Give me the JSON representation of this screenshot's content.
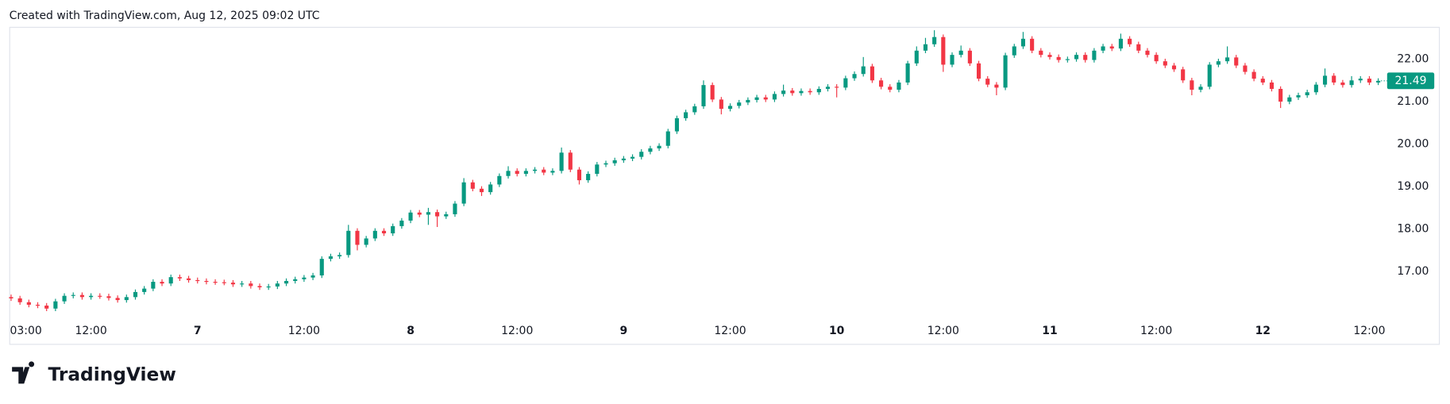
{
  "header": {
    "title": "Created with TradingView.com, Aug 12, 2025 09:02 UTC"
  },
  "footer": {
    "logo_text": "TradingView"
  },
  "chart_data": {
    "type": "candlestick",
    "up_color": "#089981",
    "down_color": "#f23645",
    "ylim": [
      15.93,
      22.76
    ],
    "yticks": [
      {
        "value": 17,
        "label": "17.00"
      },
      {
        "value": 18,
        "label": "18.00"
      },
      {
        "value": 19,
        "label": "19.00"
      },
      {
        "value": 20,
        "label": "20.00"
      },
      {
        "value": 21,
        "label": "21.00"
      },
      {
        "value": 22,
        "label": "22.00"
      }
    ],
    "grid": false,
    "categories": [
      "03:00",
      null,
      null,
      null,
      null,
      null,
      null,
      null,
      null,
      "12:00",
      null,
      null,
      null,
      null,
      null,
      null,
      null,
      null,
      null,
      null,
      null,
      "7",
      null,
      null,
      null,
      null,
      null,
      null,
      null,
      null,
      null,
      null,
      null,
      "12:00",
      null,
      null,
      null,
      null,
      null,
      null,
      null,
      null,
      null,
      null,
      null,
      "8",
      null,
      null,
      null,
      null,
      null,
      null,
      null,
      null,
      null,
      null,
      null,
      "12:00",
      null,
      null,
      null,
      null,
      null,
      null,
      null,
      null,
      null,
      null,
      null,
      "9",
      null,
      null,
      null,
      null,
      null,
      null,
      null,
      null,
      null,
      null,
      null,
      "12:00",
      null,
      null,
      null,
      null,
      null,
      null,
      null,
      null,
      null,
      null,
      null,
      "10",
      null,
      null,
      null,
      null,
      null,
      null,
      null,
      null,
      null,
      null,
      null,
      "12:00",
      null,
      null,
      null,
      null,
      null,
      null,
      null,
      null,
      null,
      null,
      null,
      "11",
      null,
      null,
      null,
      null,
      null,
      null,
      null,
      null,
      null,
      null,
      null,
      "12:00",
      null,
      null,
      null,
      null,
      null,
      null,
      null,
      null,
      null,
      null,
      null,
      "12",
      null,
      null,
      null,
      null,
      null,
      null,
      null,
      null,
      null,
      null,
      null,
      "12:00",
      null
    ],
    "open": [
      16.4,
      16.37,
      16.28,
      16.22,
      16.2,
      16.13,
      16.3,
      16.43,
      16.45,
      16.4,
      16.43,
      16.42,
      16.38,
      16.33,
      16.4,
      16.52,
      16.6,
      16.76,
      16.72,
      16.87,
      16.84,
      16.8,
      16.78,
      16.76,
      16.75,
      16.74,
      16.7,
      16.72,
      16.66,
      16.63,
      16.65,
      16.72,
      16.78,
      16.82,
      16.86,
      16.91,
      17.3,
      17.36,
      17.39,
      17.96,
      17.63,
      17.78,
      17.96,
      17.9,
      18.07,
      18.2,
      18.39,
      18.34,
      18.4,
      18.3,
      18.35,
      18.6,
      19.1,
      18.95,
      18.87,
      19.05,
      19.25,
      19.37,
      19.3,
      19.37,
      19.4,
      19.33,
      19.37,
      19.8,
      19.4,
      19.15,
      19.3,
      19.52,
      19.55,
      19.62,
      19.66,
      19.7,
      19.82,
      19.9,
      19.96,
      20.3,
      20.61,
      20.75,
      20.89,
      21.39,
      21.05,
      20.83,
      20.9,
      20.98,
      21.04,
      21.1,
      21.05,
      21.18,
      21.26,
      21.2,
      21.25,
      21.22,
      21.3,
      21.35,
      21.33,
      21.55,
      21.65,
      21.83,
      21.5,
      21.35,
      21.28,
      21.45,
      21.9,
      22.2,
      22.35,
      22.52,
      21.87,
      22.1,
      22.2,
      21.9,
      21.54,
      21.4,
      21.33,
      22.09,
      22.3,
      22.48,
      22.2,
      22.1,
      22.05,
      21.98,
      22.0,
      22.1,
      21.98,
      22.2,
      22.3,
      22.25,
      22.48,
      22.35,
      22.2,
      22.1,
      21.95,
      21.85,
      21.76,
      21.5,
      21.28,
      21.35,
      21.87,
      21.95,
      22.04,
      21.85,
      21.7,
      21.54,
      21.45,
      21.3,
      21.0,
      21.1,
      21.15,
      21.22,
      21.4,
      21.61,
      21.45,
      21.39,
      21.5,
      21.54,
      21.45
    ],
    "high": [
      16.46,
      16.43,
      16.34,
      16.28,
      16.26,
      16.36,
      16.49,
      16.51,
      16.51,
      16.49,
      16.49,
      16.48,
      16.44,
      16.46,
      16.58,
      16.66,
      16.82,
      16.82,
      16.93,
      16.93,
      16.9,
      16.86,
      16.84,
      16.82,
      16.81,
      16.8,
      16.78,
      16.78,
      16.72,
      16.71,
      16.78,
      16.84,
      16.88,
      16.92,
      16.97,
      17.36,
      17.42,
      17.45,
      18.1,
      18.02,
      17.84,
      18.02,
      18.02,
      18.13,
      18.26,
      18.45,
      18.45,
      18.5,
      18.46,
      18.41,
      18.66,
      19.2,
      19.16,
      19.01,
      19.11,
      19.31,
      19.48,
      19.43,
      19.43,
      19.46,
      19.46,
      19.43,
      19.92,
      19.86,
      19.46,
      19.36,
      19.58,
      19.61,
      19.68,
      19.72,
      19.76,
      19.88,
      19.96,
      20.02,
      20.36,
      20.67,
      20.81,
      20.95,
      21.5,
      21.45,
      21.11,
      20.96,
      21.04,
      21.1,
      21.16,
      21.16,
      21.24,
      21.4,
      21.32,
      21.31,
      21.31,
      21.36,
      21.41,
      21.41,
      21.61,
      21.71,
      22.05,
      21.89,
      21.56,
      21.41,
      21.51,
      21.96,
      22.3,
      22.5,
      22.68,
      22.58,
      22.16,
      22.32,
      22.26,
      21.96,
      21.6,
      21.46,
      22.15,
      22.36,
      22.64,
      22.54,
      22.26,
      22.16,
      22.11,
      22.06,
      22.16,
      22.16,
      22.26,
      22.36,
      22.36,
      22.6,
      22.54,
      22.41,
      22.26,
      22.16,
      22.01,
      21.91,
      21.82,
      21.56,
      21.41,
      21.93,
      22.01,
      22.3,
      22.1,
      21.91,
      21.76,
      21.6,
      21.51,
      21.36,
      21.16,
      21.21,
      21.28,
      21.46,
      21.78,
      21.67,
      21.51,
      21.6,
      21.6,
      21.6,
      21.55
    ],
    "low": [
      16.31,
      16.22,
      16.16,
      16.14,
      16.07,
      16.07,
      16.24,
      16.37,
      16.34,
      16.34,
      16.36,
      16.32,
      16.27,
      16.27,
      16.34,
      16.46,
      16.54,
      16.66,
      16.66,
      16.78,
      16.74,
      16.72,
      16.7,
      16.69,
      16.68,
      16.64,
      16.64,
      16.6,
      16.57,
      16.57,
      16.59,
      16.66,
      16.72,
      16.76,
      16.8,
      16.85,
      17.24,
      17.3,
      17.33,
      17.5,
      17.57,
      17.72,
      17.84,
      17.84,
      18.01,
      18.14,
      18.28,
      18.1,
      18.05,
      18.24,
      18.29,
      18.54,
      18.89,
      18.78,
      18.81,
      18.99,
      19.19,
      19.24,
      19.24,
      19.31,
      19.27,
      19.27,
      19.31,
      19.34,
      19.05,
      19.09,
      19.24,
      19.46,
      19.49,
      19.56,
      19.6,
      19.64,
      19.76,
      19.84,
      19.9,
      20.24,
      20.55,
      20.69,
      20.83,
      20.99,
      20.7,
      20.77,
      20.84,
      20.92,
      20.98,
      20.99,
      20.99,
      21.12,
      21.14,
      21.14,
      21.16,
      21.16,
      21.24,
      21.1,
      21.27,
      21.49,
      21.59,
      21.44,
      21.29,
      21.22,
      21.22,
      21.39,
      21.84,
      22.14,
      22.29,
      21.7,
      21.81,
      22.04,
      21.84,
      21.48,
      21.34,
      21.15,
      21.27,
      22.03,
      22.24,
      22.14,
      22.04,
      21.99,
      21.92,
      21.92,
      21.94,
      21.92,
      21.92,
      22.14,
      22.19,
      22.19,
      22.29,
      22.14,
      22.04,
      21.89,
      21.79,
      21.7,
      21.44,
      21.15,
      21.22,
      21.29,
      21.81,
      21.89,
      21.79,
      21.64,
      21.48,
      21.39,
      21.24,
      20.85,
      20.94,
      21.04,
      21.09,
      21.16,
      21.34,
      21.39,
      21.33,
      21.33,
      21.44,
      21.39,
      21.39
    ],
    "close": [
      16.37,
      16.28,
      16.22,
      16.2,
      16.13,
      16.3,
      16.43,
      16.45,
      16.4,
      16.43,
      16.42,
      16.38,
      16.33,
      16.4,
      16.52,
      16.6,
      16.76,
      16.72,
      16.87,
      16.84,
      16.8,
      16.78,
      16.76,
      16.75,
      16.74,
      16.7,
      16.72,
      16.66,
      16.63,
      16.65,
      16.72,
      16.78,
      16.82,
      16.86,
      16.91,
      17.3,
      17.36,
      17.39,
      17.96,
      17.63,
      17.78,
      17.96,
      17.9,
      18.07,
      18.2,
      18.39,
      18.34,
      18.4,
      18.3,
      18.35,
      18.6,
      19.1,
      18.95,
      18.87,
      19.05,
      19.25,
      19.37,
      19.3,
      19.37,
      19.4,
      19.33,
      19.37,
      19.8,
      19.4,
      19.15,
      19.3,
      19.52,
      19.55,
      19.62,
      19.66,
      19.7,
      19.82,
      19.9,
      19.96,
      20.3,
      20.61,
      20.75,
      20.89,
      21.39,
      21.05,
      20.83,
      20.9,
      20.98,
      21.04,
      21.1,
      21.05,
      21.18,
      21.26,
      21.2,
      21.25,
      21.22,
      21.3,
      21.35,
      21.33,
      21.55,
      21.65,
      21.83,
      21.5,
      21.35,
      21.28,
      21.45,
      21.9,
      22.2,
      22.35,
      22.52,
      21.87,
      22.1,
      22.2,
      21.9,
      21.54,
      21.4,
      21.33,
      22.09,
      22.3,
      22.48,
      22.2,
      22.1,
      22.05,
      21.98,
      22.0,
      22.1,
      21.98,
      22.2,
      22.3,
      22.25,
      22.48,
      22.35,
      22.2,
      22.1,
      21.95,
      21.85,
      21.76,
      21.5,
      21.28,
      21.35,
      21.87,
      21.95,
      22.04,
      21.85,
      21.7,
      21.54,
      21.45,
      21.3,
      21.0,
      21.1,
      21.15,
      21.22,
      21.4,
      21.61,
      21.45,
      21.39,
      21.5,
      21.54,
      21.45,
      21.49
    ]
  }
}
